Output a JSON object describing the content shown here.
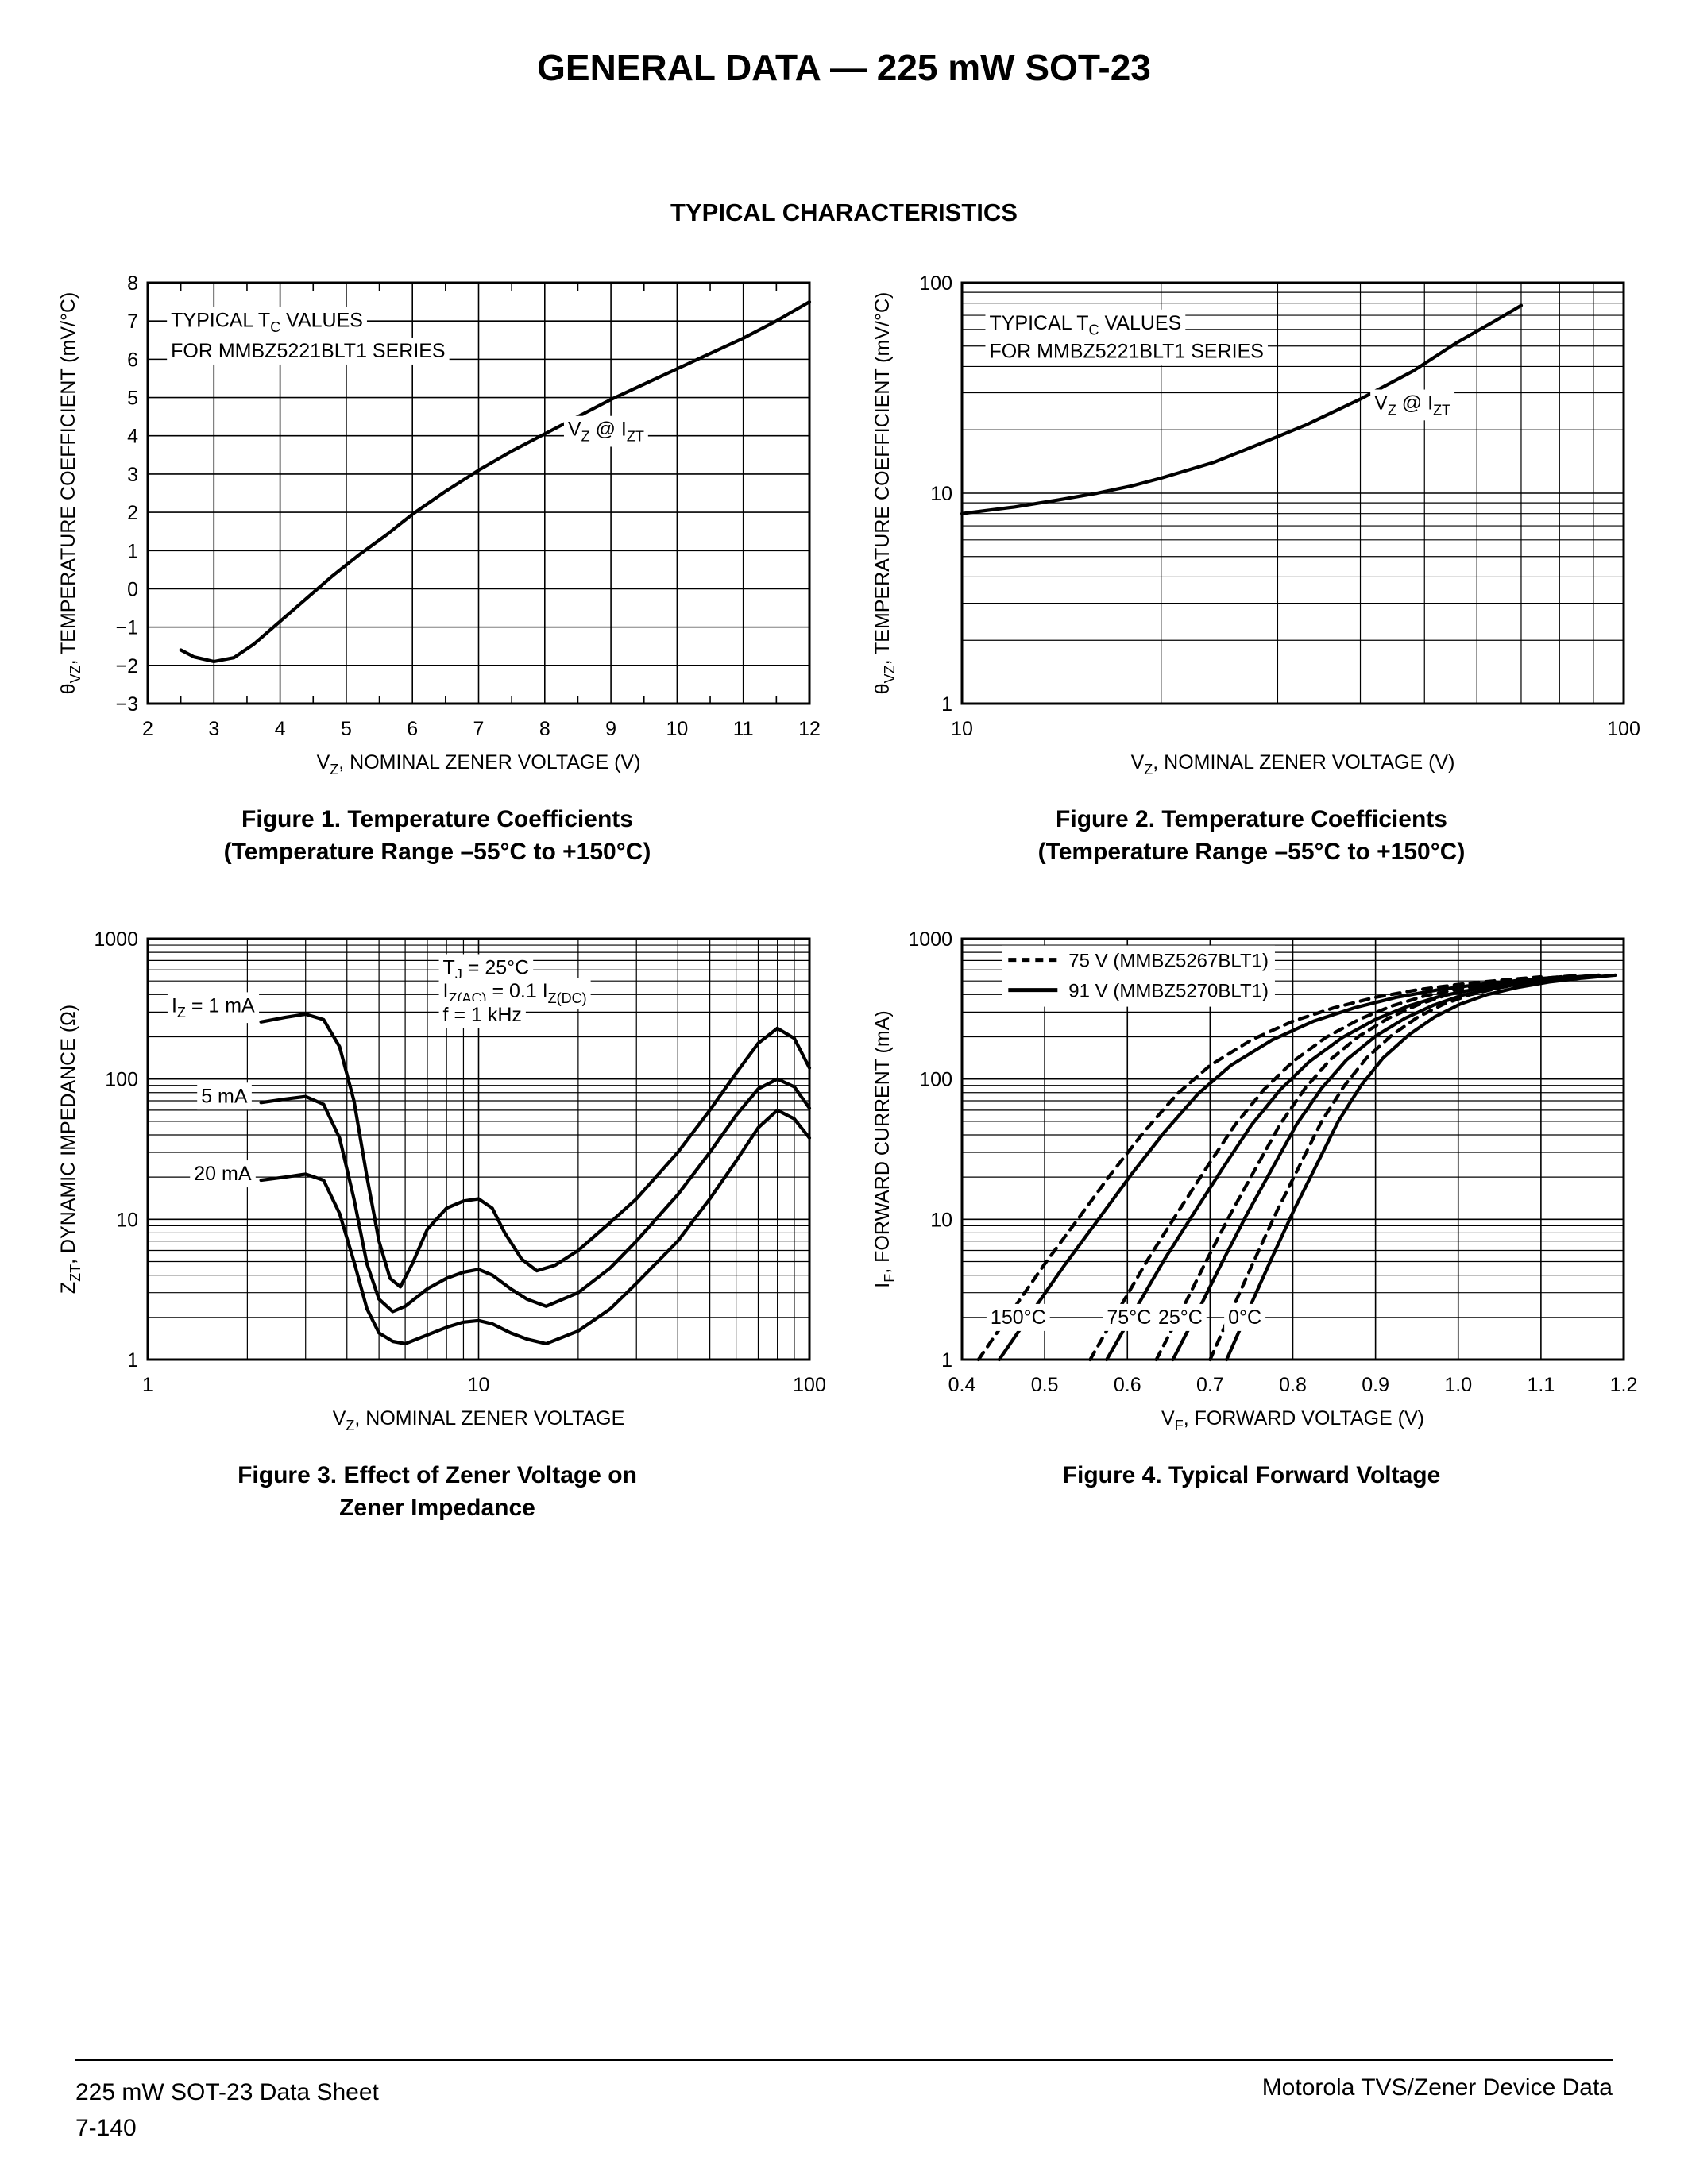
{
  "page": {
    "title": "GENERAL DATA — 225 mW SOT-23",
    "subtitle": "TYPICAL CHARACTERISTICS",
    "footer_left_line1": "225 mW SOT-23 Data Sheet",
    "footer_left_line2": "7-140",
    "footer_right": "Motorola TVS/Zener Device Data"
  },
  "figures": [
    {
      "caption_line1": "Figure 1. Temperature Coefficients",
      "caption_line2": "(Temperature Range –55°C to +150°C)"
    },
    {
      "caption_line1": "Figure 2. Temperature Coefficients",
      "caption_line2": "(Temperature Range –55°C to +150°C)"
    },
    {
      "caption_line1": "Figure 3. Effect of Zener Voltage on",
      "caption_line2": "Zener Impedance"
    },
    {
      "caption_line1": "Figure 4. Typical Forward Voltage",
      "caption_line2": ""
    }
  ],
  "chart_data": [
    {
      "type": "line",
      "xlabel": "V_{Z}, NOMINAL ZENER VOLTAGE (V)",
      "ylabel": "θ_{VZ}, TEMPERATURE COEFFICIENT (mV/°C)",
      "xscale": "linear",
      "yscale": "linear",
      "xlim": [
        2,
        12
      ],
      "ylim": [
        -3,
        8
      ],
      "xticks": [
        2,
        3,
        4,
        5,
        6,
        7,
        8,
        9,
        10,
        11,
        12
      ],
      "yticks": [
        -3,
        -2,
        -1,
        0,
        1,
        2,
        3,
        4,
        5,
        6,
        7,
        8
      ],
      "xminor_step": 0.5,
      "annotations": [
        {
          "text": "TYPICAL T_{C} VALUES",
          "x": 2.35,
          "y": 6.85
        },
        {
          "text": "FOR MMBZ5221BLT1 SERIES",
          "x": 2.35,
          "y": 6.05
        },
        {
          "text": "V_{Z} @ I_{ZT}",
          "x": 8.35,
          "y": 4.0
        }
      ],
      "series": [
        {
          "name": "temperature coefficient",
          "dash": false,
          "x": [
            2.5,
            2.7,
            3.0,
            3.3,
            3.6,
            4.0,
            4.4,
            4.8,
            5.2,
            5.6,
            6.0,
            6.5,
            7.0,
            7.5,
            8.0,
            8.5,
            9.0,
            9.5,
            10.0,
            10.5,
            11.0,
            11.5,
            12.0
          ],
          "y": [
            -1.6,
            -1.78,
            -1.9,
            -1.8,
            -1.45,
            -0.85,
            -0.25,
            0.35,
            0.9,
            1.4,
            1.95,
            2.55,
            3.1,
            3.6,
            4.05,
            4.5,
            4.95,
            5.35,
            5.75,
            6.15,
            6.55,
            7.0,
            7.5
          ]
        }
      ]
    },
    {
      "type": "line",
      "xlabel": "V_{Z}, NOMINAL ZENER VOLTAGE (V)",
      "ylabel": "θ_{VZ}, TEMPERATURE COEFFICIENT (mV/°C)",
      "xscale": "log",
      "yscale": "log",
      "xlim": [
        10,
        100
      ],
      "ylim": [
        1,
        100
      ],
      "annotations": [
        {
          "text": "TYPICAL T_{C} VALUES",
          "x": 11,
          "y": 60
        },
        {
          "text": "FOR MMBZ5221BLT1 SERIES",
          "x": 11,
          "y": 44
        },
        {
          "text": "V_{Z} @ I_{ZT}",
          "x": 42,
          "y": 25
        }
      ],
      "series": [
        {
          "name": "temperature coefficient",
          "dash": false,
          "x": [
            10,
            12,
            14,
            16,
            18,
            20,
            24,
            28,
            33,
            40,
            48,
            56,
            64,
            70
          ],
          "y": [
            8,
            8.6,
            9.3,
            10,
            10.8,
            11.8,
            14,
            17,
            21,
            28,
            38,
            52,
            66,
            78
          ]
        }
      ]
    },
    {
      "type": "line",
      "xlabel": "V_{Z}, NOMINAL ZENER VOLTAGE",
      "ylabel": "Z_{ZT}, DYNAMIC IMPEDANCE (Ω)",
      "xscale": "log",
      "yscale": "log",
      "xlim": [
        1,
        100
      ],
      "ylim": [
        1,
        1000
      ],
      "annotations": [
        {
          "text": "T_{J} = 25°C",
          "x": 7.8,
          "y": 560
        },
        {
          "text": "I_{Z(AC)} = 0.1 I_{Z(DC)}",
          "x": 7.8,
          "y": 380
        },
        {
          "text": "f = 1 kHz",
          "x": 7.8,
          "y": 258
        },
        {
          "text": "I_{Z} = 1 mA",
          "x": 1.18,
          "y": 300
        },
        {
          "text": "5 mA",
          "x": 1.45,
          "y": 68
        },
        {
          "text": "20 mA",
          "x": 1.38,
          "y": 19
        }
      ],
      "series": [
        {
          "name": "IZ = 1 mA",
          "dash": false,
          "x": [
            2.2,
            2.6,
            3.0,
            3.4,
            3.8,
            4.2,
            4.6,
            5.0,
            5.4,
            5.8,
            6.3,
            7.0,
            8.0,
            9.0,
            10.0,
            11.0,
            12.0,
            13.5,
            15.0,
            17.0,
            20.0,
            25.0,
            30.0,
            40.0,
            50.0,
            60.0,
            70.0,
            80.0,
            90.0,
            100.0
          ],
          "y": [
            255,
            275,
            290,
            265,
            170,
            70,
            20,
            7.0,
            3.8,
            3.3,
            4.8,
            8.5,
            12,
            13.5,
            14,
            12,
            8,
            5.2,
            4.3,
            4.7,
            6.0,
            9.5,
            14,
            30,
            60,
            110,
            180,
            230,
            195,
            120
          ]
        },
        {
          "name": "IZ = 5 mA",
          "dash": false,
          "x": [
            2.2,
            2.6,
            3.0,
            3.4,
            3.8,
            4.2,
            4.6,
            5.0,
            5.5,
            6.0,
            7.0,
            8.0,
            9.0,
            10.0,
            11.0,
            12.5,
            14.0,
            16.0,
            20.0,
            25.0,
            30.0,
            40.0,
            50.0,
            60.0,
            70.0,
            80.0,
            90.0,
            100.0
          ],
          "y": [
            68,
            72,
            75,
            66,
            38,
            14,
            4.8,
            2.7,
            2.2,
            2.4,
            3.2,
            3.8,
            4.2,
            4.4,
            4.0,
            3.2,
            2.7,
            2.4,
            3.0,
            4.5,
            7.0,
            15,
            30,
            55,
            85,
            100,
            88,
            62
          ]
        },
        {
          "name": "IZ = 20 mA",
          "dash": false,
          "x": [
            2.2,
            2.6,
            3.0,
            3.4,
            3.8,
            4.2,
            4.6,
            5.0,
            5.5,
            6.0,
            7.0,
            8.0,
            9.0,
            10.0,
            11.0,
            12.5,
            14.0,
            16.0,
            20.0,
            25.0,
            30.0,
            40.0,
            50.0,
            60.0,
            70.0,
            80.0,
            90.0,
            100.0
          ],
          "y": [
            19,
            20,
            21,
            19,
            11,
            5.0,
            2.3,
            1.55,
            1.35,
            1.3,
            1.5,
            1.7,
            1.85,
            1.9,
            1.8,
            1.55,
            1.4,
            1.3,
            1.6,
            2.3,
            3.5,
            7.0,
            14,
            26,
            45,
            60,
            52,
            38
          ]
        }
      ]
    },
    {
      "type": "line",
      "xlabel": "V_{F}, FORWARD VOLTAGE (V)",
      "ylabel": "I_{F}, FORWARD CURRENT (mA)",
      "xscale": "linear",
      "yscale": "log",
      "xlim": [
        0.4,
        1.2
      ],
      "ylim": [
        1,
        1000
      ],
      "xticks": [
        0.4,
        0.5,
        0.6,
        0.7,
        0.8,
        0.9,
        1.0,
        1.1,
        1.2
      ],
      "xtick_format": 1,
      "legend": {
        "fx": 0.07,
        "fy": 0.02,
        "items": [
          {
            "label": "75 V (MMBZ5267BLT1)",
            "dash": true
          },
          {
            "label": "91 V (MMBZ5270BLT1)",
            "dash": false
          }
        ]
      },
      "annotations": [
        {
          "text": "150°C",
          "x": 0.468,
          "y": 1.8,
          "anchor": "middle"
        },
        {
          "text": "75°C",
          "x": 0.602,
          "y": 1.8,
          "anchor": "middle"
        },
        {
          "text": "25°C",
          "x": 0.664,
          "y": 1.8,
          "anchor": "middle"
        },
        {
          "text": "0°C",
          "x": 0.742,
          "y": 1.8,
          "anchor": "middle"
        }
      ],
      "series": [
        {
          "name": "75 V @ 150°C",
          "dash": true,
          "x": [
            0.42,
            0.46,
            0.5,
            0.54,
            0.58,
            0.62,
            0.66,
            0.7,
            0.75,
            0.8,
            0.85,
            0.9,
            0.95,
            1.0,
            1.05,
            1.1
          ],
          "y": [
            1,
            2.2,
            4.8,
            10,
            21,
            42,
            78,
            125,
            190,
            258,
            322,
            382,
            432,
            472,
            505,
            535
          ]
        },
        {
          "name": "91 V @ 150°C",
          "dash": false,
          "x": [
            0.445,
            0.485,
            0.525,
            0.565,
            0.605,
            0.645,
            0.685,
            0.725,
            0.775,
            0.825,
            0.875,
            0.925,
            0.975,
            1.025,
            1.075,
            1.125
          ],
          "y": [
            1,
            2.2,
            4.8,
            10,
            21,
            42,
            78,
            125,
            190,
            258,
            322,
            382,
            432,
            472,
            505,
            535
          ]
        },
        {
          "name": "75 V @ 75°C",
          "dash": true,
          "x": [
            0.555,
            0.59,
            0.625,
            0.66,
            0.695,
            0.73,
            0.765,
            0.8,
            0.84,
            0.88,
            0.92,
            0.96,
            1.005,
            1.05,
            1.095,
            1.14
          ],
          "y": [
            1,
            2.3,
            5.2,
            11,
            23,
            47,
            84,
            133,
            198,
            266,
            332,
            392,
            442,
            484,
            518,
            545
          ]
        },
        {
          "name": "91 V @ 75°C",
          "dash": false,
          "x": [
            0.575,
            0.61,
            0.645,
            0.68,
            0.715,
            0.75,
            0.785,
            0.82,
            0.86,
            0.9,
            0.94,
            0.98,
            1.025,
            1.07,
            1.115,
            1.16
          ],
          "y": [
            1,
            2.3,
            5.2,
            11,
            23,
            47,
            84,
            133,
            198,
            266,
            332,
            392,
            442,
            484,
            518,
            545
          ]
        },
        {
          "name": "75 V @ 25°C",
          "dash": true,
          "x": [
            0.635,
            0.665,
            0.695,
            0.725,
            0.755,
            0.785,
            0.815,
            0.845,
            0.88,
            0.915,
            0.95,
            0.985,
            1.025,
            1.065,
            1.105,
            1.15
          ],
          "y": [
            1,
            2.2,
            5.0,
            11,
            23,
            48,
            86,
            137,
            202,
            270,
            336,
            396,
            446,
            488,
            520,
            548
          ]
        },
        {
          "name": "91 V @ 25°C",
          "dash": false,
          "x": [
            0.655,
            0.685,
            0.715,
            0.745,
            0.775,
            0.805,
            0.835,
            0.865,
            0.9,
            0.935,
            0.97,
            1.005,
            1.045,
            1.085,
            1.125,
            1.17
          ],
          "y": [
            1,
            2.2,
            5.0,
            11,
            23,
            48,
            86,
            137,
            202,
            270,
            336,
            396,
            446,
            488,
            520,
            548
          ]
        },
        {
          "name": "75 V @ 0°C",
          "dash": true,
          "x": [
            0.7,
            0.727,
            0.754,
            0.781,
            0.808,
            0.835,
            0.862,
            0.889,
            0.92,
            0.951,
            0.982,
            1.015,
            1.052,
            1.09,
            1.13,
            1.17
          ],
          "y": [
            1,
            2.3,
            5.2,
            11.5,
            24,
            50,
            89,
            141,
            206,
            276,
            341,
            400,
            450,
            492,
            524,
            550
          ]
        },
        {
          "name": "91 V @ 0°C",
          "dash": false,
          "x": [
            0.72,
            0.747,
            0.774,
            0.801,
            0.828,
            0.855,
            0.882,
            0.909,
            0.94,
            0.971,
            1.002,
            1.035,
            1.072,
            1.11,
            1.15,
            1.19
          ],
          "y": [
            1,
            2.3,
            5.2,
            11.5,
            24,
            50,
            89,
            141,
            206,
            276,
            341,
            400,
            450,
            492,
            524,
            550
          ]
        }
      ]
    }
  ]
}
